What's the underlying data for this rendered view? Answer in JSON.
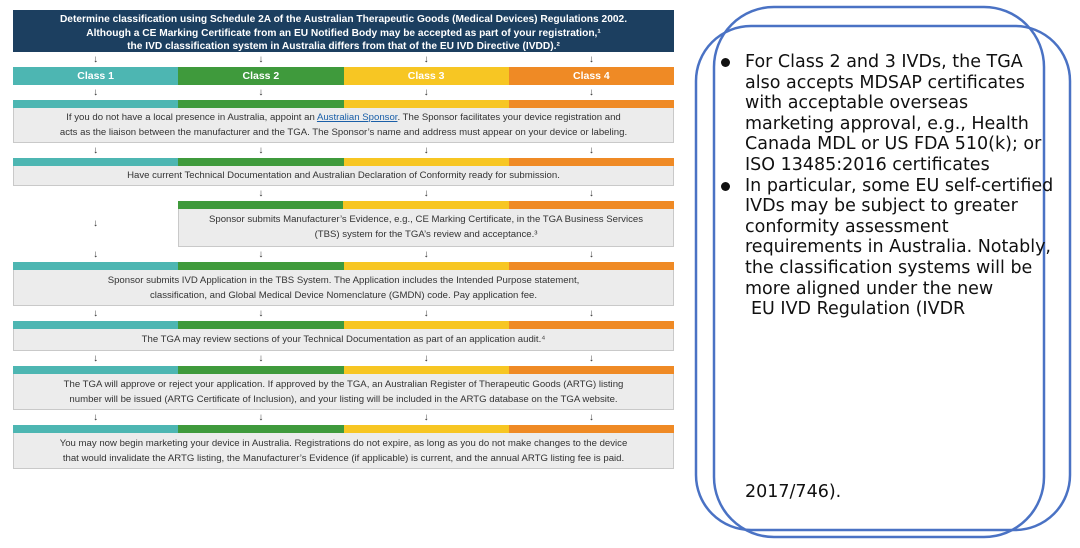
{
  "header": {
    "line1": "Determine classification using Schedule 2A of the Australian Therapeutic Goods (Medical Devices) Regulations 2002.",
    "line2": "Although a CE Marking Certificate from an EU Notified Body may be accepted as part of your registration,¹",
    "line3": "the IVD classification system in Australia differs from that of the EU IVD Directive (IVDD).²"
  },
  "arrow": "↓",
  "classes": [
    "Class 1",
    "Class 2",
    "Class 3",
    "Class 4"
  ],
  "colors": {
    "class1": "#4db6b2",
    "class2": "#3f9a3c",
    "class3": "#f7c623",
    "class4": "#ef8a25",
    "header": "#1c3f60"
  },
  "steps": {
    "sponsor_pre": "If you do not have a local presence in Australia, appoint an ",
    "sponsor_link": "Australian Sponsor",
    "sponsor_post": ". The Sponsor facilitates your device registration and",
    "sponsor_line2": "acts as the liaison between the manufacturer and the TGA. The Sponsor’s name and address must appear on your device or labeling.",
    "docs": "Have current Technical Documentation and Australian Declaration of Conformity ready for submission.",
    "evidence_line1": "Sponsor submits Manufacturer’s Evidence, e.g., CE Marking Certificate, in the TGA Business Services",
    "evidence_line2": "(TBS) system for the TGA’s review and acceptance.³",
    "application_line1": "Sponsor submits IVD Application in the TBS System. The Application includes the Intended Purpose statement,",
    "application_line2": "classification, and Global Medical Device Nomenclature (GMDN) code. Pay application fee.",
    "audit": "The TGA may review sections of your Technical Documentation as part of an application audit.⁴",
    "approve_line1": "The TGA will approve or reject your application. If approved by the TGA, an Australian Register of Therapeutic Goods (ARTG) listing",
    "approve_line2": "number will be issued (ARTG Certificate of Inclusion), and your listing will be included in the ARTG database on the TGA website.",
    "market_line1": "You may now begin marketing your device in Australia. Registrations do not expire, as long as you do not make changes to the device",
    "market_line2": "that would invalidate the ARTG listing, the Manufacturer’s Evidence (if applicable) is current, and the annual ARTG listing fee is paid."
  },
  "panel": {
    "bullet1": "For Class 2 and 3 IVDs, the TGA also accepts MDSAP certificates with acceptable overseas marketing approval, e.g., Health Canada MDL or US FDA 510(k); or ISO 13485:2016 certificates",
    "bullet2_main": "In particular, some EU self-certified IVDs may be subject to greater conformity assessment requirements in Australia. Notably, the classification systems will be more aligned under the new",
    "bullet2_tail1": "EU IVD Regulation (IVDR",
    "bullet2_tail2": "2017/746)."
  }
}
